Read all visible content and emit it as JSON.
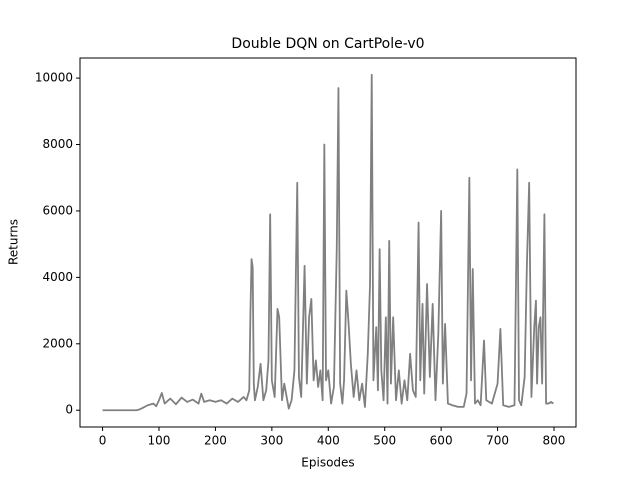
{
  "chart_data": {
    "type": "line",
    "title": "Double DQN on CartPole-v0",
    "x_label": "Episodes",
    "y_label": "Returns",
    "xlim": [
      -40,
      839
    ],
    "xticks": [
      0,
      100,
      200,
      300,
      400,
      500,
      600,
      700,
      800
    ],
    "ylim": [
      -505,
      10605
    ],
    "yticks": [
      0,
      2000,
      4000,
      6000,
      8000,
      10000
    ],
    "series": [
      {
        "color": "#808080",
        "x": [
          0,
          10,
          20,
          30,
          40,
          50,
          60,
          65,
          70,
          80,
          90,
          95,
          100,
          105,
          110,
          120,
          130,
          140,
          150,
          160,
          170,
          175,
          180,
          190,
          200,
          210,
          220,
          230,
          240,
          250,
          255,
          260,
          262,
          264,
          266,
          268,
          270,
          275,
          280,
          285,
          290,
          294,
          297,
          300,
          305,
          310,
          313,
          318,
          322,
          330,
          335,
          340,
          345,
          348,
          352,
          358,
          362,
          366,
          370,
          374,
          378,
          382,
          386,
          390,
          393,
          396,
          400,
          405,
          410,
          415,
          418,
          421,
          425,
          428,
          432,
          436,
          440,
          445,
          450,
          455,
          460,
          465,
          470,
          474,
          477,
          480,
          485,
          488,
          491,
          494,
          498,
          502,
          505,
          508,
          511,
          515,
          520,
          525,
          530,
          535,
          540,
          545,
          550,
          555,
          560,
          563,
          567,
          570,
          575,
          580,
          585,
          590,
          595,
          600,
          603,
          607,
          612,
          620,
          630,
          640,
          645,
          650,
          653,
          656,
          660,
          665,
          670,
          676,
          680,
          690,
          700,
          705,
          710,
          720,
          730,
          735,
          738,
          742,
          748,
          752,
          756,
          760,
          765,
          768,
          770,
          773,
          776,
          779,
          783,
          786,
          790,
          795,
          799
        ],
        "values": [
          0,
          0,
          0,
          0,
          0,
          0,
          0,
          20,
          60,
          150,
          200,
          120,
          300,
          520,
          200,
          350,
          180,
          380,
          250,
          320,
          200,
          500,
          250,
          300,
          250,
          300,
          200,
          350,
          250,
          400,
          300,
          600,
          2900,
          4550,
          4300,
          800,
          300,
          700,
          1400,
          300,
          600,
          1500,
          5900,
          900,
          400,
          3050,
          2800,
          300,
          800,
          50,
          300,
          1200,
          6850,
          1000,
          400,
          4350,
          800,
          2800,
          3350,
          900,
          1500,
          700,
          1200,
          300,
          8000,
          900,
          1200,
          200,
          700,
          4850,
          9700,
          800,
          200,
          900,
          3600,
          2600,
          1400,
          400,
          1200,
          300,
          800,
          100,
          1700,
          3800,
          10100,
          900,
          2500,
          600,
          4850,
          1200,
          300,
          2800,
          200,
          5100,
          800,
          2800,
          300,
          1200,
          200,
          900,
          300,
          1700,
          600,
          400,
          5650,
          900,
          3200,
          500,
          3800,
          1000,
          3200,
          300,
          2300,
          6000,
          800,
          2600,
          200,
          150,
          100,
          100,
          500,
          7000,
          900,
          4250,
          200,
          300,
          150,
          2100,
          300,
          200,
          800,
          2450,
          150,
          100,
          150,
          7250,
          300,
          150,
          1000,
          4400,
          6850,
          400,
          2500,
          3300,
          800,
          2500,
          2800,
          800,
          5900,
          200,
          200,
          250,
          200
        ]
      }
    ]
  }
}
